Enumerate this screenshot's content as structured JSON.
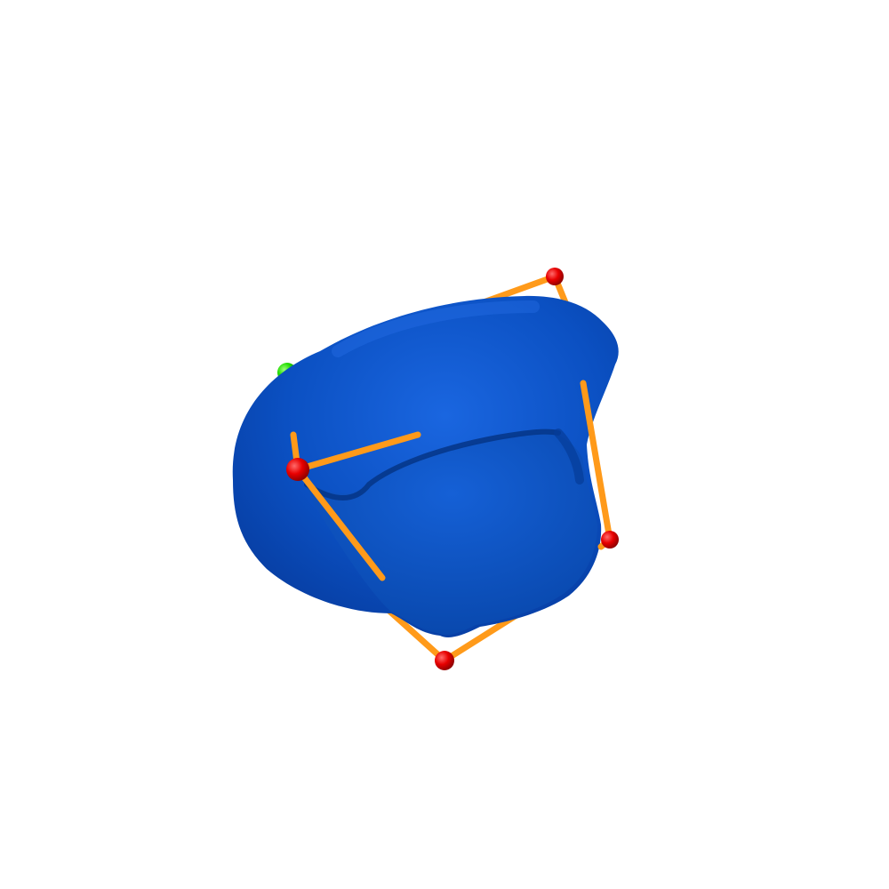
{
  "scene": {
    "background": "#ffffff",
    "mesh_color": "#0a4fc0",
    "mesh_shadow": "#063a94",
    "mesh_highlight": "#1f6be0",
    "edge_color": "#ff9a1a",
    "vertex_color": "#e00000",
    "secondary_vertex_color": "#22dd00",
    "objects": [
      "blue-surface-mesh",
      "orange-wireframe",
      "red-markers",
      "green-markers"
    ]
  }
}
